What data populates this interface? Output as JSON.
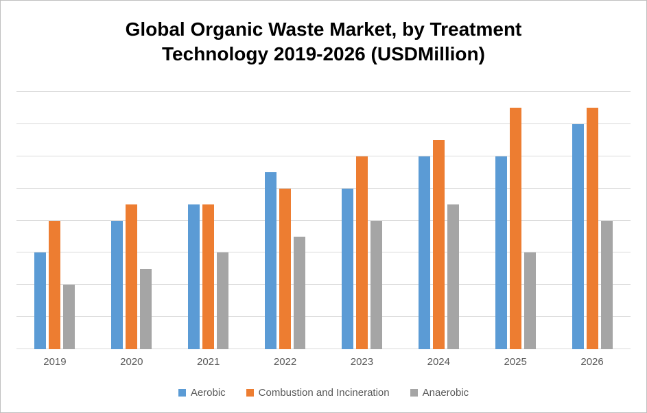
{
  "chart_data": {
    "type": "bar",
    "title": "Global Organic Waste Market, by Treatment Technology 2019-2026 (USDMillion)",
    "categories": [
      "2019",
      "2020",
      "2021",
      "2022",
      "2023",
      "2024",
      "2025",
      "2026"
    ],
    "series": [
      {
        "name": "Aerobic",
        "color": "#5b9bd5",
        "values": [
          30,
          40,
          45,
          55,
          50,
          60,
          60,
          70
        ]
      },
      {
        "name": "Combustion and Incineration",
        "color": "#ed7d31",
        "values": [
          40,
          45,
          45,
          50,
          60,
          65,
          75,
          75
        ]
      },
      {
        "name": "Anaerobic",
        "color": "#a5a5a5",
        "values": [
          20,
          25,
          30,
          35,
          40,
          45,
          30,
          40
        ]
      }
    ],
    "xlabel": "",
    "ylabel": "",
    "ylim": [
      0,
      80
    ],
    "gridline_interval": 10,
    "grid": true,
    "y_tick_labels_visible": false,
    "legend_position": "bottom"
  },
  "colors": {
    "gridline": "#d9d9d9",
    "axis_text": "#595959",
    "title_text": "#000000",
    "border": "#bfbfbf"
  }
}
